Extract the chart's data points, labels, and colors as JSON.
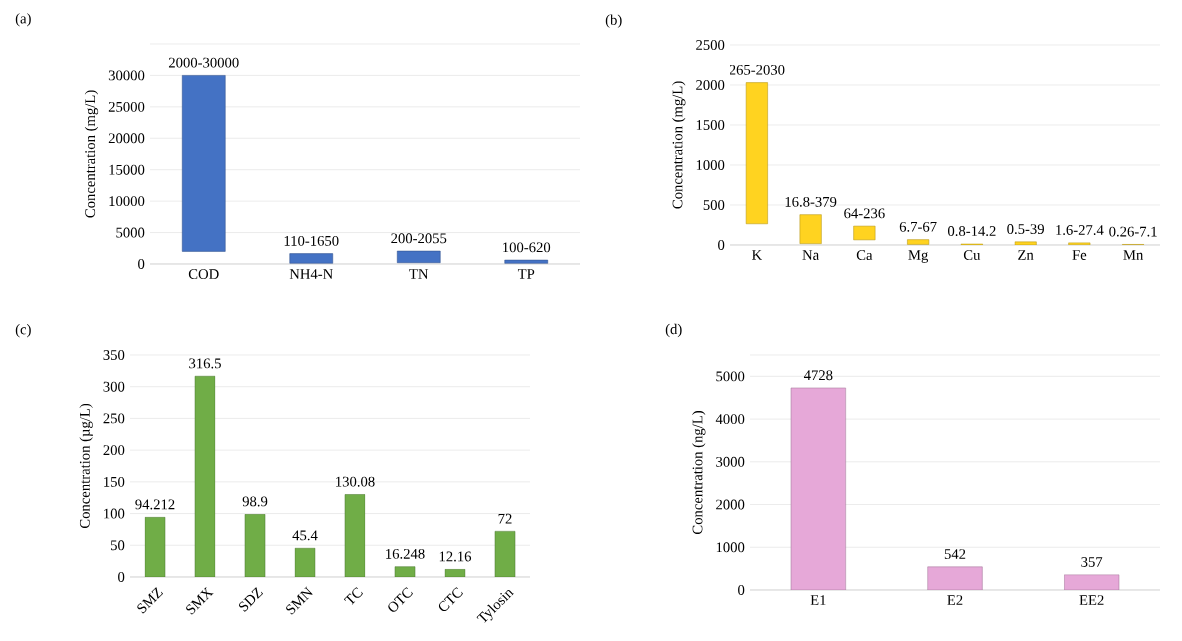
{
  "chart_data": [
    {
      "type": "bar",
      "title": "(a)",
      "ylabel": "Concentration (mg/L)",
      "categories": [
        "COD",
        "NH4-N",
        "TN",
        "TP"
      ],
      "base": [
        2000,
        110,
        200,
        100
      ],
      "values": [
        28000,
        1540,
        1855,
        520
      ],
      "value_labels": [
        "2000-30000",
        "110-1650",
        "200-2055",
        "100-620"
      ],
      "color": "#4472c4",
      "ylim": [
        0,
        35000
      ],
      "yticks": [
        0,
        5000,
        10000,
        15000,
        20000,
        25000,
        30000,
        {
          "value": 35000,
          "label": null
        }
      ],
      "grid": "y"
    },
    {
      "type": "bar",
      "title": "(b)",
      "ylabel": "Concentration (mg/L)",
      "categories": [
        "K",
        "Na",
        "Ca",
        "Mg",
        "Cu",
        "Zn",
        "Fe",
        "Mn"
      ],
      "base": [
        265,
        16.8,
        64,
        6.7,
        0.8,
        0.5,
        1.6,
        0.26
      ],
      "values": [
        1765,
        362.2,
        172,
        60.3,
        13.4,
        38.5,
        25.8,
        6.84
      ],
      "value_labels": [
        "265-2030",
        "16.8-379",
        "64-236",
        "6.7-67",
        "0.8-14.2",
        "0.5-39",
        "1.6-27.4",
        "0.26-7.1"
      ],
      "color": "#ffd320",
      "ylim": [
        0,
        2500
      ],
      "yticks": [
        0,
        500,
        1000,
        1500,
        2000,
        2500
      ],
      "grid": "y"
    },
    {
      "type": "bar",
      "title": "(c)",
      "ylabel": "Concentration (µg/L)",
      "categories": [
        "SMZ",
        "SMX",
        "SDZ",
        "SMN",
        "TC",
        "OTC",
        "CTC",
        "Tylosin"
      ],
      "values": [
        94.212,
        316.5,
        98.9,
        45.4,
        130.08,
        16.248,
        12.16,
        72
      ],
      "data_labels": true,
      "color": "#70ad47",
      "ylim": [
        0,
        350
      ],
      "yticks": [
        0,
        50,
        100,
        150,
        200,
        250,
        300,
        350
      ],
      "grid": "y"
    },
    {
      "type": "bar",
      "title": "(d)",
      "ylabel": "Concentration (ng/L)",
      "categories": [
        "E1",
        "E2",
        "EE2"
      ],
      "values": [
        4728,
        542,
        357
      ],
      "data_labels": true,
      "color": "#e6a8d8",
      "ylim": [
        0,
        5500
      ],
      "yticks": [
        0,
        1000,
        2000,
        3000,
        4000,
        5000,
        {
          "value": 5500,
          "label": null
        }
      ],
      "grid": "y"
    }
  ]
}
